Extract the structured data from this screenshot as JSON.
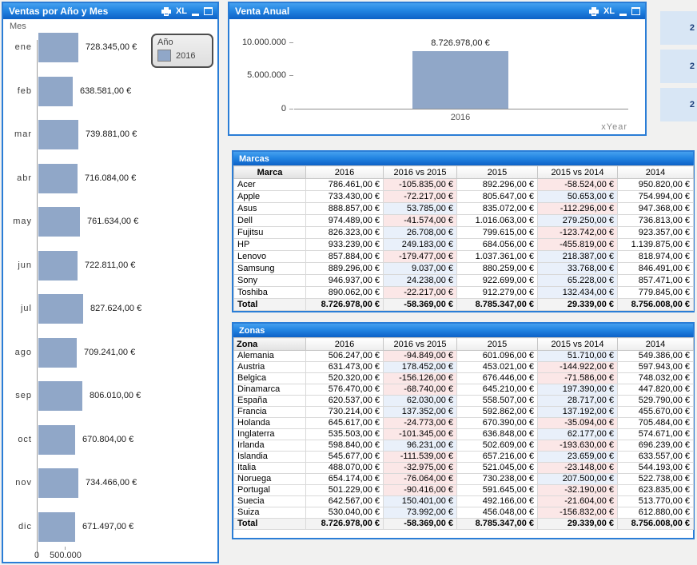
{
  "colors": {
    "caption_blue_top": "#46a0ef",
    "caption_blue_bottom": "#0d61c6",
    "panel_border": "#2a7dd6",
    "bar_fill": "#90a7c8",
    "negative_text": "#e31212",
    "negative_bg": "#fbe7e7",
    "positive_text": "#1b40bf",
    "positive_bg": "#e9f0fa",
    "listbox_bg": "#d8e6f5"
  },
  "caption_icons": {
    "print": "print",
    "excel": "XL",
    "minimize": "minimize",
    "maximize": "maximize"
  },
  "monthly_chart": {
    "title": "Ventas por Año y Mes",
    "dimension_label": "Mes",
    "legend": {
      "title": "Año",
      "label": "2016"
    },
    "chart_data": {
      "type": "bar-horizontal",
      "categories": [
        "ene",
        "feb",
        "mar",
        "abr",
        "may",
        "jun",
        "jul",
        "ago",
        "sep",
        "oct",
        "nov",
        "dic"
      ],
      "values": [
        728345,
        638581,
        739881,
        716084,
        761634,
        722811,
        827624,
        709241,
        806010,
        670804,
        734466,
        671497
      ],
      "labels": [
        "728.345,00 €",
        "638.581,00 €",
        "739.881,00 €",
        "716.084,00 €",
        "761.634,00 €",
        "722.811,00 €",
        "827.624,00 €",
        "709.241,00 €",
        "806.010,00 €",
        "670.804,00 €",
        "734.466,00 €",
        "671.497,00 €"
      ],
      "x_ticks": [
        "0",
        "500.000"
      ],
      "x_tick_values": [
        0,
        500000
      ],
      "series_name": "2016"
    }
  },
  "annual_chart": {
    "title": "Venta Anual",
    "x_axis_label": "xYear",
    "chart_data": {
      "type": "bar",
      "categories": [
        "2016"
      ],
      "values": [
        8726978
      ],
      "labels": [
        "8.726.978,00 €"
      ],
      "y_ticks": [
        "0",
        "5.000.000",
        "10.000.000"
      ],
      "y_tick_values": [
        0,
        5000000,
        10000000
      ],
      "ymax": 10000000
    }
  },
  "brands_table": {
    "title": "Marcas",
    "columns": [
      "Marca",
      "2016",
      "2016 vs 2015",
      "2015",
      "2015 vs 2014",
      "2014"
    ],
    "delta_columns": [
      2,
      4
    ],
    "rows": [
      [
        "Acer",
        "786.461,00 €",
        "-105.835,00 €",
        "892.296,00 €",
        "-58.524,00 €",
        "950.820,00 €"
      ],
      [
        "Apple",
        "733.430,00 €",
        "-72.217,00 €",
        "805.647,00 €",
        "50.653,00 €",
        "754.994,00 €"
      ],
      [
        "Asus",
        "888.857,00 €",
        "53.785,00 €",
        "835.072,00 €",
        "-112.296,00 €",
        "947.368,00 €"
      ],
      [
        "Dell",
        "974.489,00 €",
        "-41.574,00 €",
        "1.016.063,00 €",
        "279.250,00 €",
        "736.813,00 €"
      ],
      [
        "Fujitsu",
        "826.323,00 €",
        "26.708,00 €",
        "799.615,00 €",
        "-123.742,00 €",
        "923.357,00 €"
      ],
      [
        "HP",
        "933.239,00 €",
        "249.183,00 €",
        "684.056,00 €",
        "-455.819,00 €",
        "1.139.875,00 €"
      ],
      [
        "Lenovo",
        "857.884,00 €",
        "-179.477,00 €",
        "1.037.361,00 €",
        "218.387,00 €",
        "818.974,00 €"
      ],
      [
        "Samsung",
        "889.296,00 €",
        "9.037,00 €",
        "880.259,00 €",
        "33.768,00 €",
        "846.491,00 €"
      ],
      [
        "Sony",
        "946.937,00 €",
        "24.238,00 €",
        "922.699,00 €",
        "65.228,00 €",
        "857.471,00 €"
      ],
      [
        "Toshiba",
        "890.062,00 €",
        "-22.217,00 €",
        "912.279,00 €",
        "132.434,00 €",
        "779.845,00 €"
      ]
    ],
    "total": [
      "Total",
      "8.726.978,00 €",
      "-58.369,00 €",
      "8.785.347,00 €",
      "29.339,00 €",
      "8.756.008,00 €"
    ]
  },
  "zones_table": {
    "title": "Zonas",
    "columns": [
      "Zona",
      "2016",
      "2016 vs 2015",
      "2015",
      "2015 vs 2014",
      "2014"
    ],
    "delta_columns": [
      2,
      4
    ],
    "rows": [
      [
        "Alemania",
        "506.247,00 €",
        "-94.849,00 €",
        "601.096,00 €",
        "51.710,00 €",
        "549.386,00 €"
      ],
      [
        "Austria",
        "631.473,00 €",
        "178.452,00 €",
        "453.021,00 €",
        "-144.922,00 €",
        "597.943,00 €"
      ],
      [
        "Belgica",
        "520.320,00 €",
        "-156.126,00 €",
        "676.446,00 €",
        "-71.586,00 €",
        "748.032,00 €"
      ],
      [
        "Dinamarca",
        "576.470,00 €",
        "-68.740,00 €",
        "645.210,00 €",
        "197.390,00 €",
        "447.820,00 €"
      ],
      [
        "España",
        "620.537,00 €",
        "62.030,00 €",
        "558.507,00 €",
        "28.717,00 €",
        "529.790,00 €"
      ],
      [
        "Francia",
        "730.214,00 €",
        "137.352,00 €",
        "592.862,00 €",
        "137.192,00 €",
        "455.670,00 €"
      ],
      [
        "Holanda",
        "645.617,00 €",
        "-24.773,00 €",
        "670.390,00 €",
        "-35.094,00 €",
        "705.484,00 €"
      ],
      [
        "Inglaterra",
        "535.503,00 €",
        "-101.345,00 €",
        "636.848,00 €",
        "62.177,00 €",
        "574.671,00 €"
      ],
      [
        "Irlanda",
        "598.840,00 €",
        "96.231,00 €",
        "502.609,00 €",
        "-193.630,00 €",
        "696.239,00 €"
      ],
      [
        "Islandia",
        "545.677,00 €",
        "-111.539,00 €",
        "657.216,00 €",
        "23.659,00 €",
        "633.557,00 €"
      ],
      [
        "Italia",
        "488.070,00 €",
        "-32.975,00 €",
        "521.045,00 €",
        "-23.148,00 €",
        "544.193,00 €"
      ],
      [
        "Noruega",
        "654.174,00 €",
        "-76.064,00 €",
        "730.238,00 €",
        "207.500,00 €",
        "522.738,00 €"
      ],
      [
        "Portugal",
        "501.229,00 €",
        "-90.416,00 €",
        "591.645,00 €",
        "-32.190,00 €",
        "623.835,00 €"
      ],
      [
        "Suecia",
        "642.567,00 €",
        "150.401,00 €",
        "492.166,00 €",
        "-21.604,00 €",
        "513.770,00 €"
      ],
      [
        "Suiza",
        "530.040,00 €",
        "73.992,00 €",
        "456.048,00 €",
        "-156.832,00 €",
        "612.880,00 €"
      ]
    ],
    "total": [
      "Total",
      "8.726.978,00 €",
      "-58.369,00 €",
      "8.785.347,00 €",
      "29.339,00 €",
      "8.756.008,00 €"
    ]
  },
  "year_listbox": {
    "items": [
      "2",
      "2",
      "2"
    ]
  }
}
